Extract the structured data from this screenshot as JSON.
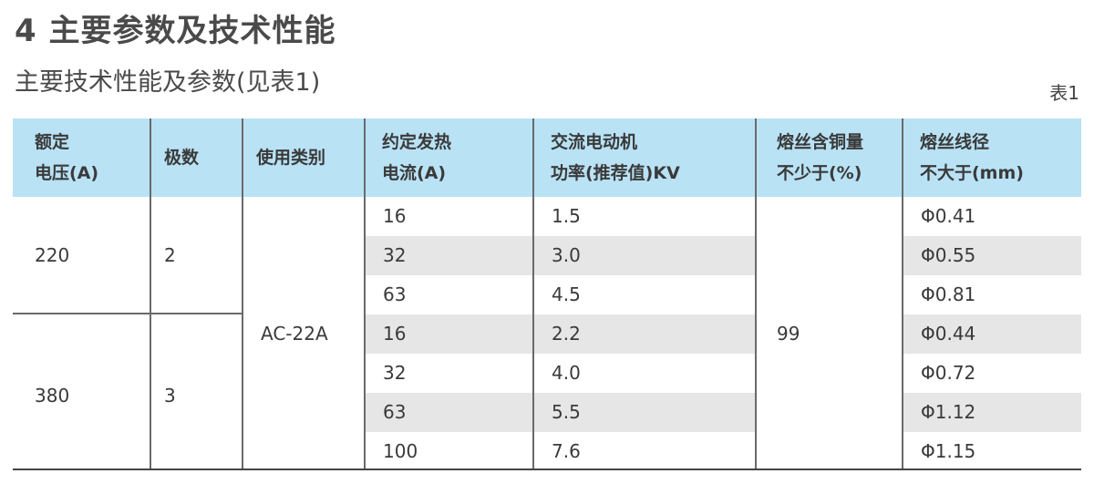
{
  "section_title": "4 主要参数及技术性能",
  "subtitle": "主要技术性能及参数(见表1)",
  "table_label": "表1",
  "table": {
    "headers": [
      [
        "额定",
        "电压(A)"
      ],
      [
        "极数"
      ],
      [
        "使用类别"
      ],
      [
        "约定发热",
        "电流(A)"
      ],
      [
        "交流电动机",
        "功率(推荐值)KV"
      ],
      [
        "熔丝含铜量",
        "不少于(%)"
      ],
      [
        "熔丝线径",
        "不大于(mm)"
      ]
    ],
    "groups": [
      {
        "voltage": "220",
        "poles": "2"
      },
      {
        "voltage": "380",
        "poles": "3"
      }
    ],
    "category": "AC-22A",
    "copper_content": "99",
    "rows": [
      {
        "current": "16",
        "power": "1.5",
        "diameter": "Φ0.41"
      },
      {
        "current": "32",
        "power": "3.0",
        "diameter": "Φ0.55"
      },
      {
        "current": "63",
        "power": "4.5",
        "diameter": "Φ0.81"
      },
      {
        "current": "16",
        "power": "2.2",
        "diameter": "Φ0.44"
      },
      {
        "current": "32",
        "power": "4.0",
        "diameter": "Φ0.72"
      },
      {
        "current": "63",
        "power": "5.5",
        "diameter": "Φ1.12"
      },
      {
        "current": "100",
        "power": "7.6",
        "diameter": "Φ1.15"
      }
    ]
  }
}
